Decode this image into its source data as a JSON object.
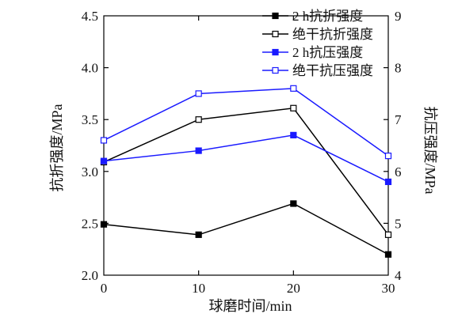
{
  "chart_data": {
    "type": "line",
    "x": [
      0,
      10,
      20,
      30
    ],
    "xticks": [
      "0",
      "10",
      "20",
      "30"
    ],
    "xlim": [
      0,
      30
    ],
    "xlabel": "球磨时间/min",
    "ylabel_left": "抗折强度/MPa",
    "ylim_left": [
      2.0,
      4.5
    ],
    "yticks_left": [
      "2.0",
      "2.5",
      "3.0",
      "3.5",
      "4.0",
      "4.5"
    ],
    "ylabel_right": "抗压强度/MPa",
    "ylim_right": [
      4,
      9
    ],
    "yticks_right": [
      "4",
      "5",
      "6",
      "7",
      "8",
      "9"
    ],
    "grid": false,
    "legend_position": "top-right",
    "series": [
      {
        "name": "2 h抗折强度",
        "axis": "left",
        "color": "#000000",
        "marker": "filled-square",
        "values": [
          2.49,
          2.39,
          2.69,
          2.2
        ]
      },
      {
        "name": "绝干抗折强度",
        "axis": "left",
        "color": "#000000",
        "marker": "open-square",
        "values": [
          3.09,
          3.5,
          3.61,
          2.39
        ]
      },
      {
        "name": "2 h抗压强度",
        "axis": "right",
        "color": "#1a1aff",
        "marker": "filled-square",
        "values": [
          6.2,
          6.4,
          6.7,
          5.8
        ]
      },
      {
        "name": "绝干抗压强度",
        "axis": "right",
        "color": "#1a1aff",
        "marker": "open-square",
        "values": [
          6.6,
          7.5,
          7.6,
          6.3
        ]
      }
    ]
  }
}
